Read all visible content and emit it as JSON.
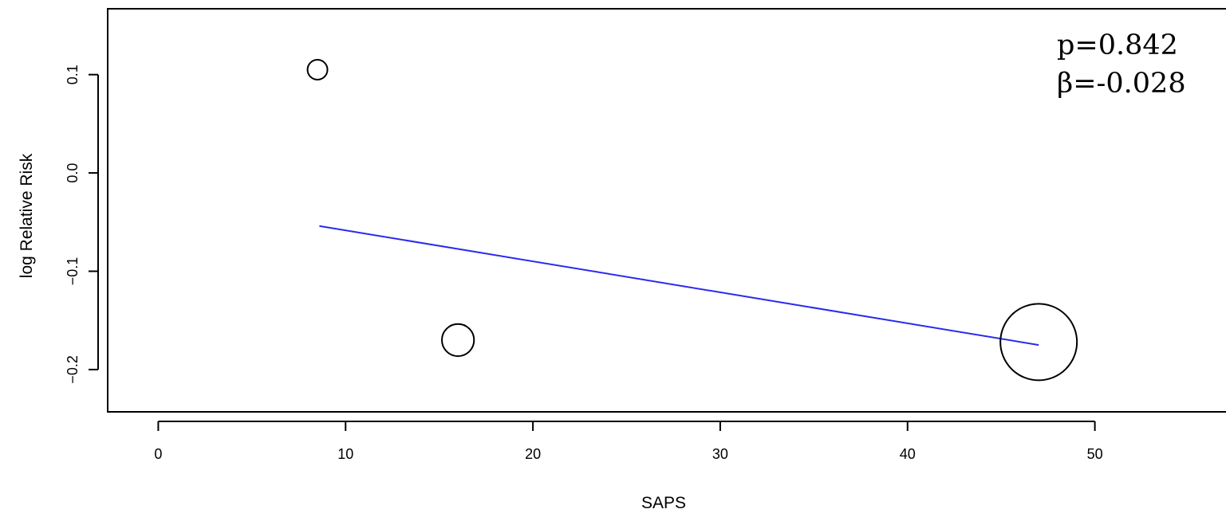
{
  "chart_data": {
    "type": "scatter",
    "xlabel": "SAPS",
    "ylabel": "log Relative Risk",
    "xlim": [
      -2.7,
      57
    ],
    "ylim": [
      -0.243,
      0.167
    ],
    "x_ticks": [
      0,
      10,
      20,
      30,
      40,
      50
    ],
    "x_tick_labels": [
      "0",
      "10",
      "20",
      "30",
      "40",
      "50"
    ],
    "y_ticks": [
      0.1,
      0.0,
      -0.1,
      -0.2
    ],
    "y_tick_labels": [
      "0.1",
      "0.0",
      "−0.1",
      "−0.2"
    ],
    "points": [
      {
        "x": 8.5,
        "y": 0.105,
        "relative_size": 0.26
      },
      {
        "x": 16.0,
        "y": -0.17,
        "relative_size": 0.42
      },
      {
        "x": 47.0,
        "y": -0.172,
        "relative_size": 1.0
      }
    ],
    "regression_line": {
      "color": "#2a2aee",
      "x": [
        8.6,
        47.0
      ],
      "y": [
        -0.054,
        -0.175
      ]
    },
    "annotations": [
      "p=0.842",
      "β=-0.028"
    ],
    "grid": false,
    "colors": {
      "axis": "#000000",
      "points": "#000000",
      "background": "#ffffff"
    }
  }
}
